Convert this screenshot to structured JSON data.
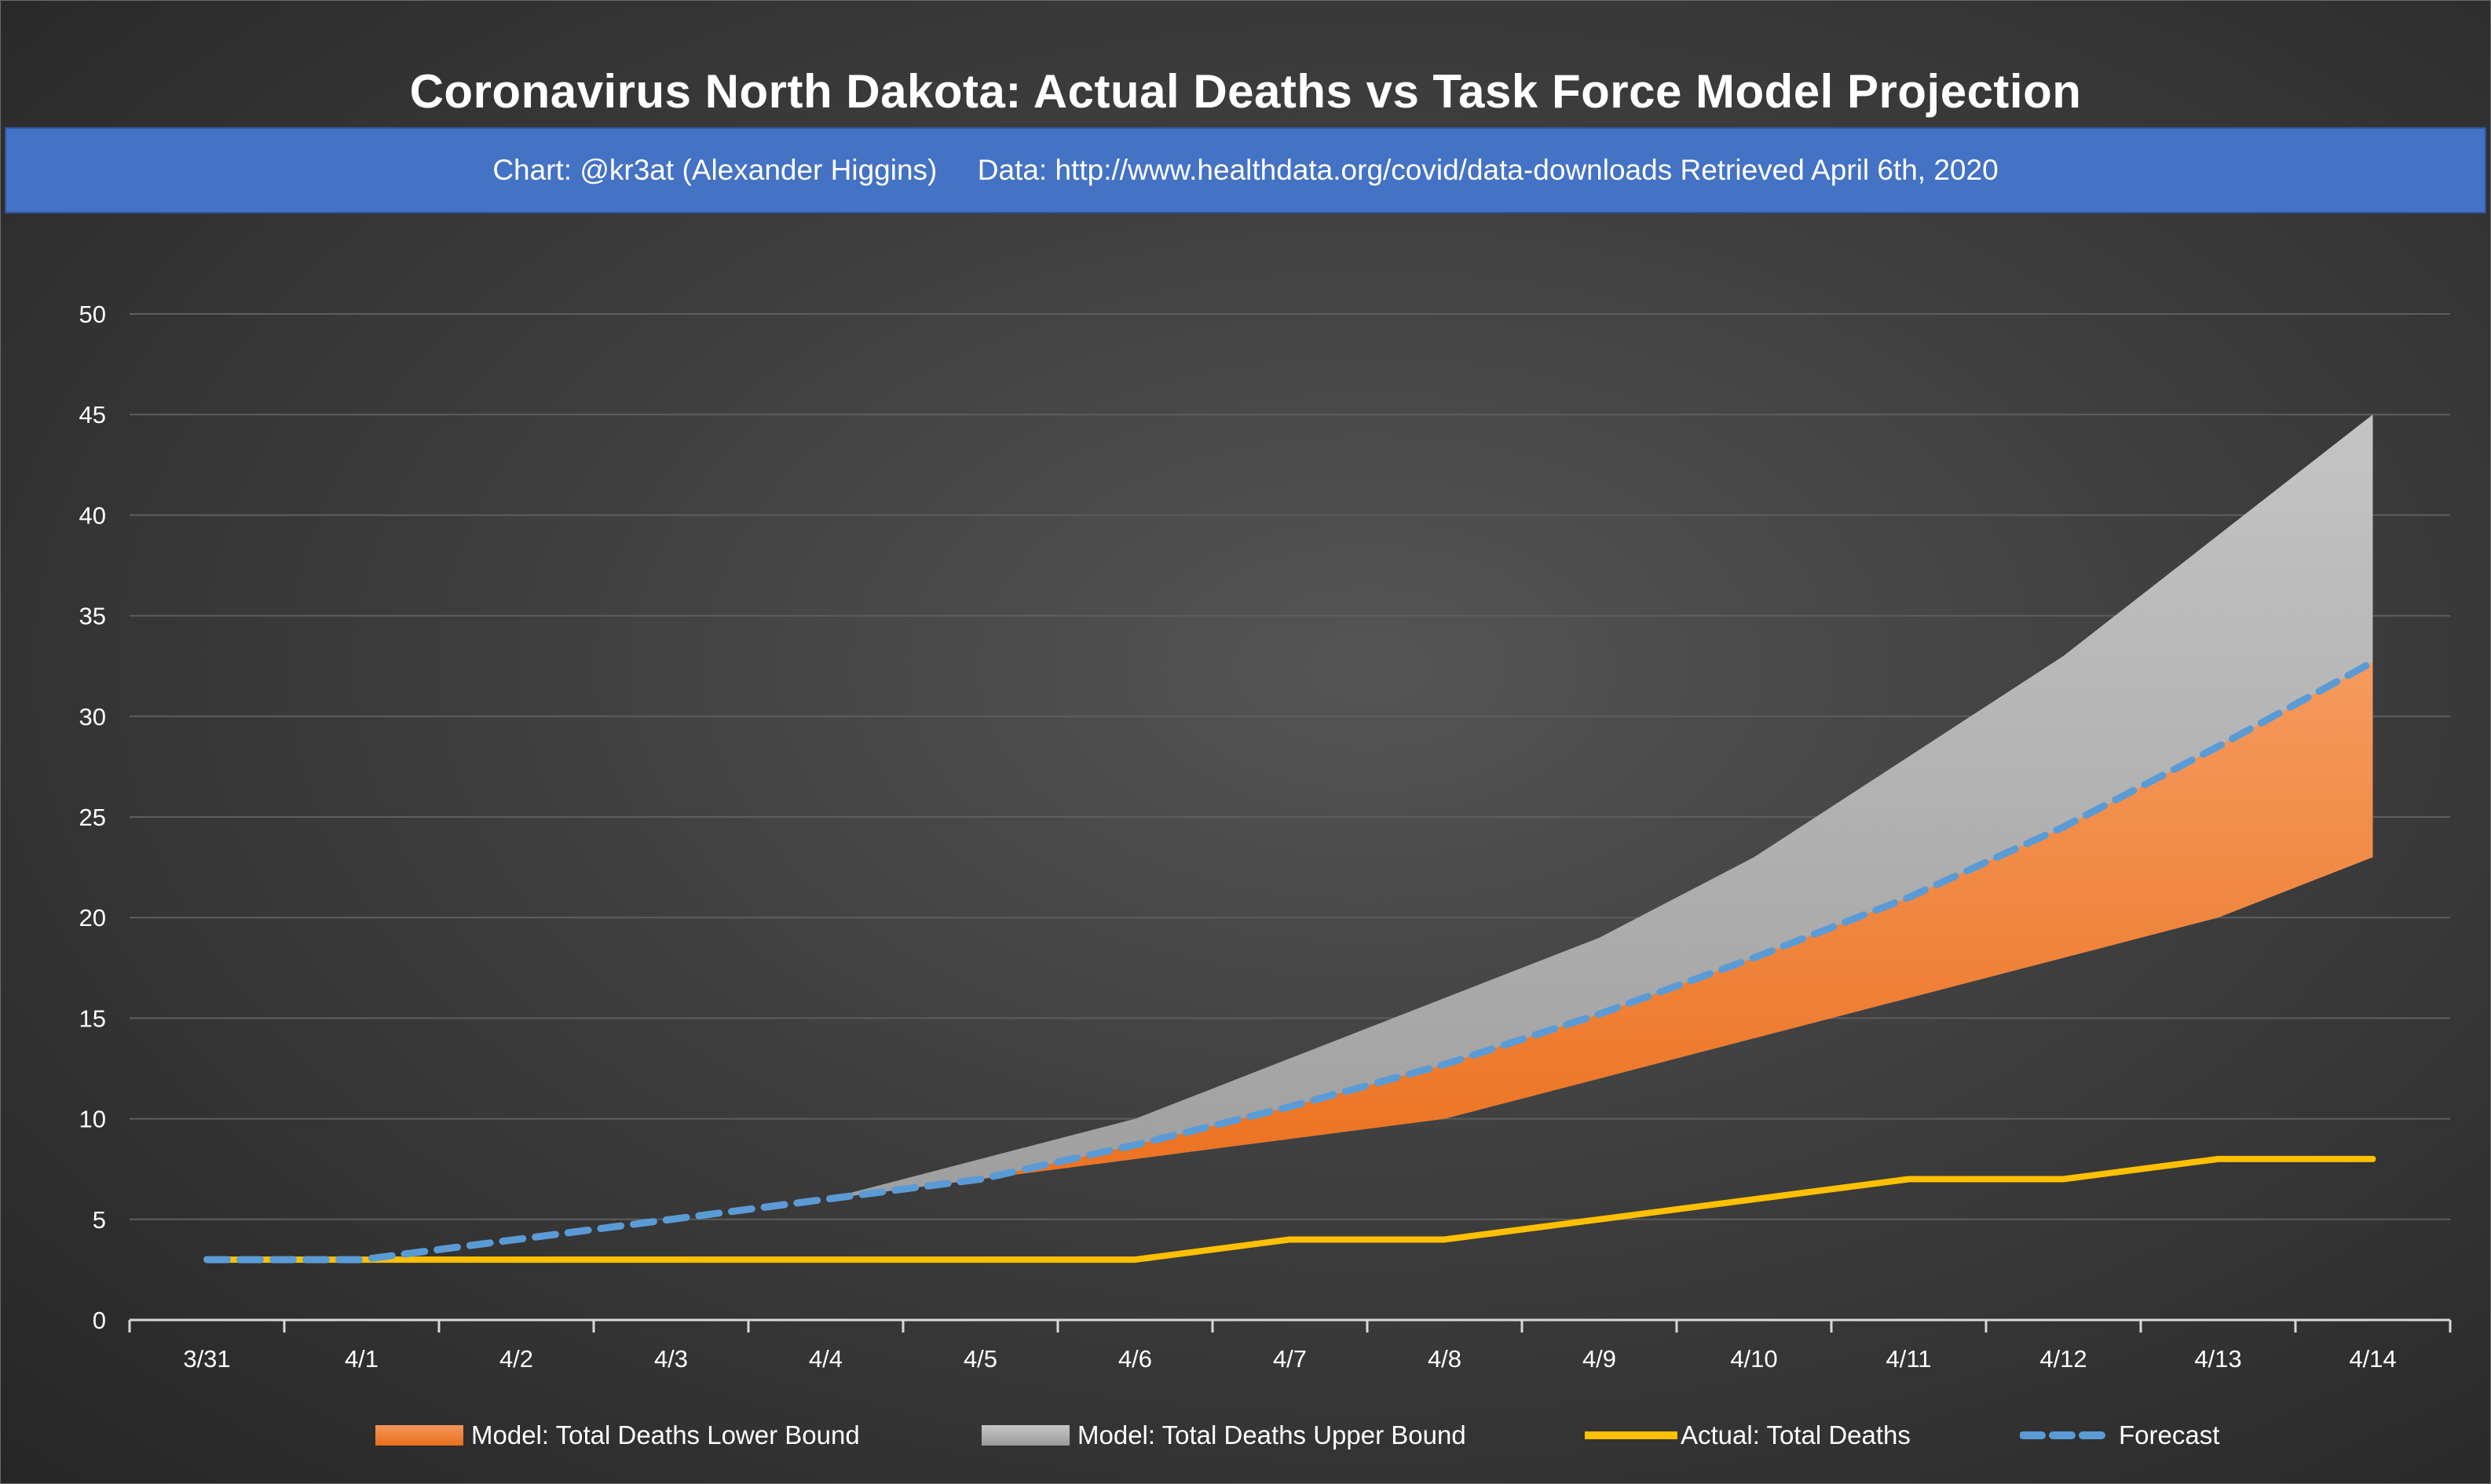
{
  "header": {
    "title": "Coronavirus North Dakota: Actual Deaths vs Task Force Model Projection",
    "subtitle": "Chart: @kr3at (Alexander Higgins)     Data: http://www.healthdata.org/covid/data-downloads Retrieved April 6th, 2020"
  },
  "colors": {
    "lower_bound": "#f07a24",
    "upper_bound": "#a8a8a8",
    "actual": "#ffc000",
    "forecast": "#5b9bd5",
    "subtitle_bar": "#4472c4"
  },
  "chart_data": {
    "type": "area",
    "categories": [
      "3/31",
      "4/1",
      "4/2",
      "4/3",
      "4/4",
      "4/5",
      "4/6",
      "4/7",
      "4/8",
      "4/9",
      "4/10",
      "4/11",
      "4/12",
      "4/13",
      "4/14"
    ],
    "ylim": [
      0,
      50
    ],
    "yticks": [
      0,
      5,
      10,
      15,
      20,
      25,
      30,
      35,
      40,
      45,
      50
    ],
    "grid": true,
    "legend_position": "bottom",
    "series": [
      {
        "name": "Model: Total Deaths Lower Bound",
        "kind": "area",
        "values": [
          3,
          3,
          4,
          5,
          6,
          7,
          8,
          9,
          10,
          12,
          14,
          16,
          18,
          20,
          23
        ]
      },
      {
        "name": "Model: Total Deaths Upper Bound",
        "kind": "area",
        "values": [
          3,
          3,
          4,
          5,
          6,
          8,
          10,
          13,
          16,
          19,
          23,
          28,
          33,
          39,
          45
        ]
      },
      {
        "name": "Actual: Total Deaths",
        "kind": "line",
        "values": [
          3,
          3,
          3,
          3,
          3,
          3,
          3,
          4,
          4,
          5,
          6,
          7,
          7,
          8,
          8
        ]
      },
      {
        "name": "Forecast",
        "kind": "dashed-line",
        "values": [
          3,
          3,
          4,
          5,
          6,
          7,
          8.7,
          10.6,
          12.7,
          15.2,
          18,
          21,
          24.5,
          28.5,
          32.7
        ]
      }
    ]
  }
}
